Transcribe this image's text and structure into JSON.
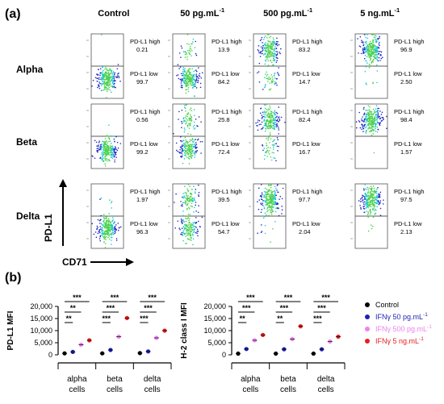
{
  "panel_a": {
    "label": "(a)",
    "columns": [
      {
        "main": "Control",
        "sup": ""
      },
      {
        "main": "50 pg.mL",
        "sup": "-1"
      },
      {
        "main": "500 pg.mL",
        "sup": "-1"
      },
      {
        "main": "5 ng.mL",
        "sup": "-1"
      }
    ],
    "rows": [
      "Alpha",
      "Beta",
      "Delta"
    ],
    "gate_high_label": "PD-L1 high",
    "gate_low_label": "PD-L1 low",
    "y_axis_label": "PD-L1",
    "x_axis_label": "CD71",
    "values": [
      [
        [
          "0.21",
          "99.7"
        ],
        [
          "13.9",
          "84.2"
        ],
        [
          "83.2",
          "14.7"
        ],
        [
          "96.9",
          "2.50"
        ]
      ],
      [
        [
          "0.56",
          "99.2"
        ],
        [
          "25.8",
          "72.4"
        ],
        [
          "82.4",
          "16.7"
        ],
        [
          "98.4",
          "1.57"
        ]
      ],
      [
        [
          "1.97",
          "96.3"
        ],
        [
          "39.5",
          "54.7"
        ],
        [
          "97.7",
          "2.04"
        ],
        [
          "97.5",
          "2.13"
        ]
      ]
    ],
    "colors": {
      "gate": "#555555",
      "density_low": "#1f24c8",
      "density_mid": "#19c8c8",
      "density_high": "#4cd24c"
    }
  },
  "panel_b": {
    "label": "(b)",
    "chart_data": [
      {
        "type": "scatter",
        "ylabel": "PD-L1 MFI",
        "ylim": [
          0,
          20000
        ],
        "yticks": [
          "0",
          "5,000",
          "10,000",
          "15,000",
          "20,000"
        ],
        "categories": [
          "alpha cells",
          "beta cells",
          "delta cells"
        ],
        "series": [
          {
            "name": "Control",
            "values": [
              600,
              600,
              700
            ]
          },
          {
            "name": "IFNγ 50 pg.mL-1",
            "values": [
              1200,
              2000,
              1400
            ]
          },
          {
            "name": "IFNγ 500 pg.mL-1",
            "values": [
              4200,
              7500,
              7000
            ]
          },
          {
            "name": "IFNγ 5 ng.mL-1",
            "values": [
              6000,
              15200,
              10000
            ]
          }
        ],
        "significance": [
          "***",
          "**",
          "**",
          "***",
          "***",
          "***",
          "***",
          "***",
          "***"
        ]
      },
      {
        "type": "scatter",
        "ylabel": "H-2 class I MFI",
        "ylim": [
          0,
          20000
        ],
        "yticks": [
          "0",
          "5,000",
          "10,000",
          "15,000",
          "20,000"
        ],
        "categories": [
          "alpha cells",
          "beta cells",
          "delta cells"
        ],
        "series": [
          {
            "name": "Control",
            "values": [
              500,
              500,
              500
            ]
          },
          {
            "name": "IFNγ 50 pg.mL-1",
            "values": [
              2400,
              2300,
              2300
            ]
          },
          {
            "name": "IFNγ 500 pg.mL-1",
            "values": [
              6000,
              6500,
              5500
            ]
          },
          {
            "name": "IFNγ 5 ng.mL-1",
            "values": [
              8200,
              11800,
              7500
            ]
          }
        ],
        "significance": [
          "***",
          "***",
          "**",
          "***",
          "***",
          "**",
          "***",
          "***",
          "***"
        ]
      }
    ],
    "category_lines": [
      [
        "alpha",
        "cells"
      ],
      [
        "beta",
        "cells"
      ],
      [
        "delta",
        "cells"
      ]
    ],
    "legend": [
      {
        "prefix": "Control",
        "text": "",
        "sup": "",
        "color": "#000000"
      },
      {
        "prefix": "IFNγ",
        "text": " 50 pg.mL",
        "sup": "-1",
        "color": "#1f1fb4"
      },
      {
        "prefix": "IFNγ",
        "text": " 500 pg.mL",
        "sup": "-1",
        "color": "#ee82ee"
      },
      {
        "prefix": "IFNγ",
        "text": " 5 ng.mL",
        "sup": "-1",
        "color": "#e81e1e"
      }
    ]
  }
}
